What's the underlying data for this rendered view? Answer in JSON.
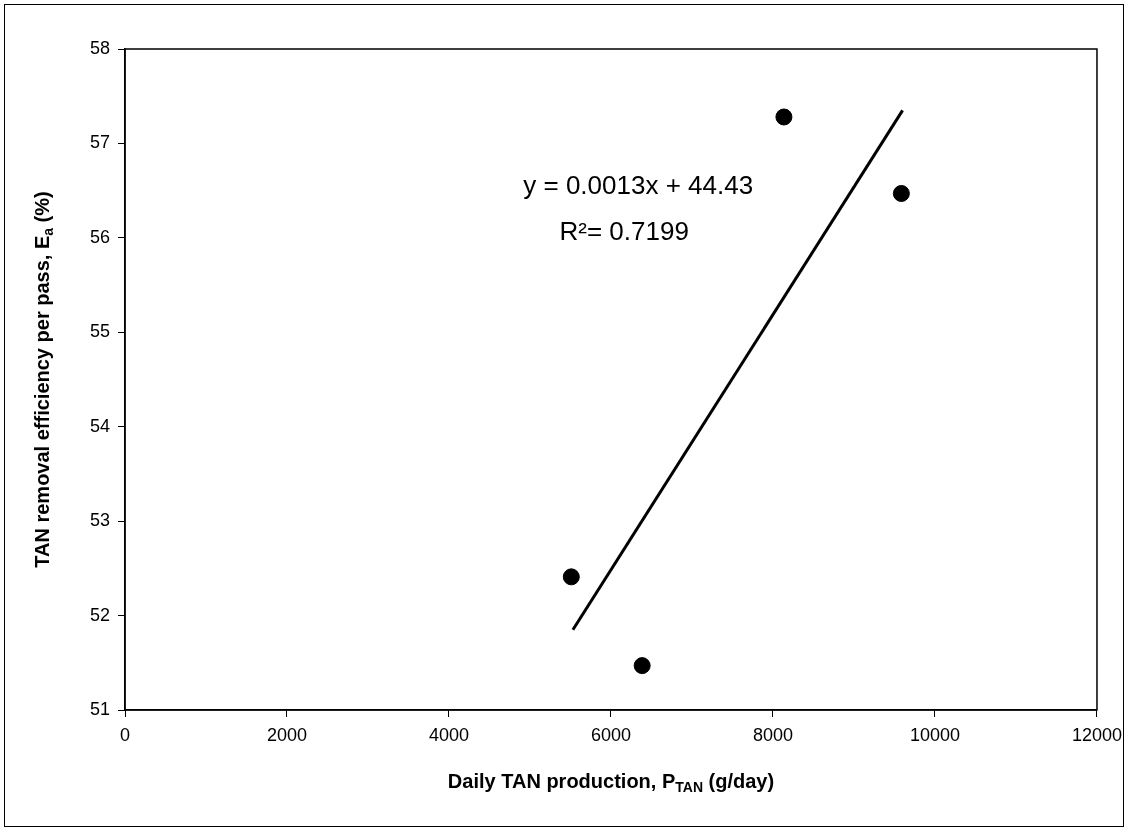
{
  "chart_data": {
    "type": "scatter",
    "xlabel": "Daily TAN production, P$_{TAN}$ (g/day)",
    "ylabel": "TAN removal efficiency per pass, E$_{a}$ (%)",
    "x": [
      5510,
      6385,
      8135,
      9585
    ],
    "series": [
      {
        "type": "scatter",
        "color": "#000000",
        "values": [
          52.41,
          51.47,
          57.28,
          56.47
        ],
        "marker": "circle"
      },
      {
        "type": "line",
        "color": "#000000",
        "x": [
          5530,
          9600
        ],
        "values": [
          51.85,
          57.35
        ],
        "marker": "none",
        "line_style": "solid"
      }
    ],
    "xlim": [
      0,
      12000
    ],
    "xticks": [
      0,
      2000,
      4000,
      6000,
      8000,
      10000,
      12000
    ],
    "ylim": [
      51,
      58
    ],
    "yticks": [
      51,
      52,
      53,
      54,
      55,
      56,
      57,
      58
    ],
    "grid": false,
    "legend": false,
    "annotations": [
      "y = 0.0013x + 44.43",
      "R²= 0.7199"
    ]
  }
}
